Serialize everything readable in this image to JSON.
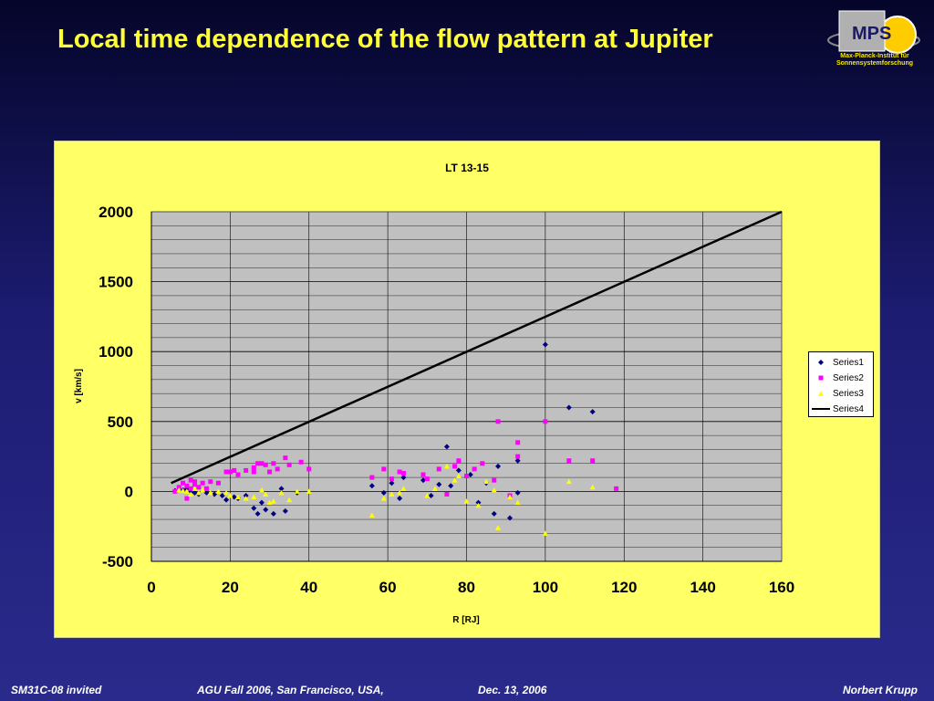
{
  "slide": {
    "title": "Local time dependence of the flow pattern at Jupiter"
  },
  "logo": {
    "text": "MPS",
    "caption_line1": "Max-Planck-Institut für",
    "caption_line2": "Sonnensystemforschung"
  },
  "footer": {
    "left": "SM31C-08 invited",
    "center": "AGU Fall 2006, San Francisco, USA,",
    "date": "Dec. 13, 2006",
    "author": "Norbert Krupp"
  },
  "colors": {
    "series1": "#000080",
    "series2": "#ff00ff",
    "series3": "#ffff00",
    "series4": "#000000",
    "plot_bg": "#c0c0c0",
    "panel_bg": "#ffff66"
  },
  "chart_data": {
    "type": "scatter",
    "title": "LT 13-15",
    "xlabel": "R [RJ]",
    "ylabel": "v [km/s]",
    "xlim": [
      0,
      160
    ],
    "ylim": [
      -500,
      2000
    ],
    "xticks": [
      0,
      20,
      40,
      60,
      80,
      100,
      120,
      140,
      160
    ],
    "yticks": [
      -500,
      0,
      500,
      1000,
      1500,
      2000
    ],
    "grid": true,
    "legend_position": "right",
    "series": [
      {
        "name": "Series1",
        "marker": "diamond",
        "points": [
          [
            6,
            5
          ],
          [
            8,
            10
          ],
          [
            9,
            20
          ],
          [
            10,
            0
          ],
          [
            11,
            -10
          ],
          [
            12,
            -20
          ],
          [
            14,
            -10
          ],
          [
            16,
            -20
          ],
          [
            18,
            -30
          ],
          [
            19,
            -60
          ],
          [
            21,
            -40
          ],
          [
            22,
            -50
          ],
          [
            24,
            -30
          ],
          [
            26,
            -120
          ],
          [
            27,
            -160
          ],
          [
            28,
            -80
          ],
          [
            29,
            -130
          ],
          [
            31,
            -160
          ],
          [
            33,
            20
          ],
          [
            34,
            -140
          ],
          [
            37,
            -10
          ],
          [
            56,
            40
          ],
          [
            59,
            -10
          ],
          [
            61,
            60
          ],
          [
            63,
            -50
          ],
          [
            64,
            100
          ],
          [
            69,
            80
          ],
          [
            71,
            -30
          ],
          [
            73,
            50
          ],
          [
            75,
            320
          ],
          [
            76,
            40
          ],
          [
            78,
            150
          ],
          [
            81,
            120
          ],
          [
            83,
            -80
          ],
          [
            85,
            60
          ],
          [
            87,
            -160
          ],
          [
            88,
            180
          ],
          [
            91,
            -190
          ],
          [
            93,
            220
          ],
          [
            93,
            -10
          ],
          [
            100,
            1050
          ],
          [
            106,
            600
          ],
          [
            112,
            570
          ]
        ]
      },
      {
        "name": "Series2",
        "marker": "square",
        "points": [
          [
            6,
            0
          ],
          [
            7,
            30
          ],
          [
            8,
            60
          ],
          [
            9,
            -50
          ],
          [
            9,
            40
          ],
          [
            10,
            80
          ],
          [
            10,
            20
          ],
          [
            11,
            50
          ],
          [
            11,
            70
          ],
          [
            12,
            30
          ],
          [
            13,
            60
          ],
          [
            14,
            20
          ],
          [
            15,
            70
          ],
          [
            17,
            60
          ],
          [
            19,
            140
          ],
          [
            20,
            140
          ],
          [
            21,
            150
          ],
          [
            22,
            120
          ],
          [
            24,
            150
          ],
          [
            26,
            140
          ],
          [
            26,
            170
          ],
          [
            27,
            200
          ],
          [
            28,
            200
          ],
          [
            29,
            190
          ],
          [
            30,
            140
          ],
          [
            31,
            200
          ],
          [
            32,
            160
          ],
          [
            34,
            240
          ],
          [
            35,
            190
          ],
          [
            38,
            210
          ],
          [
            40,
            160
          ],
          [
            56,
            100
          ],
          [
            59,
            160
          ],
          [
            61,
            90
          ],
          [
            63,
            140
          ],
          [
            64,
            130
          ],
          [
            69,
            120
          ],
          [
            70,
            90
          ],
          [
            73,
            160
          ],
          [
            75,
            -20
          ],
          [
            77,
            180
          ],
          [
            78,
            220
          ],
          [
            80,
            110
          ],
          [
            82,
            160
          ],
          [
            84,
            200
          ],
          [
            87,
            80
          ],
          [
            88,
            500
          ],
          [
            91,
            -30
          ],
          [
            93,
            350
          ],
          [
            93,
            250
          ],
          [
            100,
            500
          ],
          [
            106,
            220
          ],
          [
            112,
            220
          ],
          [
            118,
            20
          ]
        ]
      },
      {
        "name": "Series3",
        "marker": "triangle",
        "points": [
          [
            7,
            10
          ],
          [
            8,
            5
          ],
          [
            9,
            0
          ],
          [
            10,
            -20
          ],
          [
            11,
            20
          ],
          [
            12,
            -10
          ],
          [
            13,
            10
          ],
          [
            15,
            -10
          ],
          [
            17,
            0
          ],
          [
            19,
            -10
          ],
          [
            20,
            -30
          ],
          [
            22,
            -40
          ],
          [
            24,
            -50
          ],
          [
            26,
            -40
          ],
          [
            28,
            10
          ],
          [
            29,
            -20
          ],
          [
            30,
            -80
          ],
          [
            31,
            -70
          ],
          [
            33,
            -10
          ],
          [
            35,
            -60
          ],
          [
            37,
            0
          ],
          [
            40,
            0
          ],
          [
            56,
            -170
          ],
          [
            59,
            -50
          ],
          [
            61,
            -20
          ],
          [
            63,
            -10
          ],
          [
            64,
            20
          ],
          [
            70,
            -30
          ],
          [
            72,
            20
          ],
          [
            75,
            180
          ],
          [
            77,
            80
          ],
          [
            78,
            110
          ],
          [
            80,
            -70
          ],
          [
            83,
            -100
          ],
          [
            85,
            70
          ],
          [
            87,
            10
          ],
          [
            88,
            -260
          ],
          [
            91,
            -40
          ],
          [
            93,
            -80
          ],
          [
            100,
            -300
          ],
          [
            106,
            70
          ],
          [
            112,
            30
          ]
        ]
      },
      {
        "name": "Series4",
        "marker": "line",
        "points": [
          [
            5,
            60
          ],
          [
            160,
            2000
          ]
        ]
      }
    ]
  }
}
